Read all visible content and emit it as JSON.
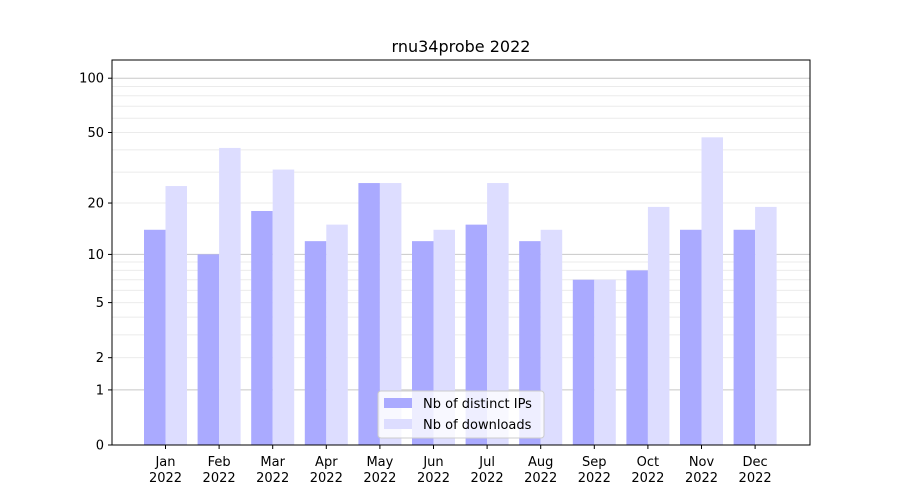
{
  "chart_data": {
    "type": "bar",
    "title": "rnu34probe 2022",
    "xlabel": "",
    "ylabel": "",
    "y_scale": "log(1+y)",
    "ylim": [
      0,
      126
    ],
    "yticks": [
      0,
      1,
      2,
      5,
      10,
      20,
      50,
      100
    ],
    "grid": true,
    "legend_position": "bottom-center",
    "categories": [
      "Jan\n2022",
      "Feb\n2022",
      "Mar\n2022",
      "Apr\n2022",
      "May\n2022",
      "Jun\n2022",
      "Jul\n2022",
      "Aug\n2022",
      "Sep\n2022",
      "Oct\n2022",
      "Nov\n2022",
      "Dec\n2022"
    ],
    "series": [
      {
        "name": "Nb of distinct IPs",
        "color": "#aaaaff",
        "values": [
          14,
          10,
          18,
          12,
          26,
          12,
          15,
          12,
          7,
          8,
          14,
          14
        ]
      },
      {
        "name": "Nb of downloads",
        "color": "#ddddff",
        "values": [
          25,
          41,
          31,
          15,
          26,
          14,
          26,
          14,
          7,
          19,
          47,
          19
        ]
      }
    ]
  }
}
